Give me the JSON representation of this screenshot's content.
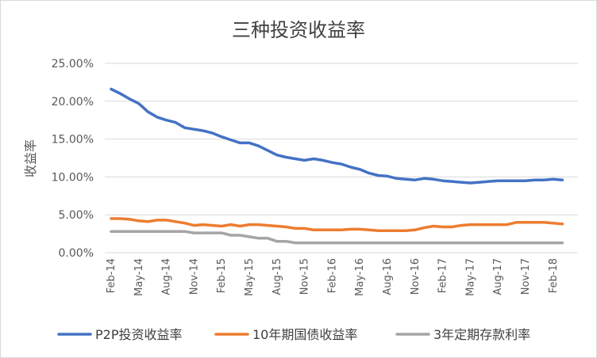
{
  "chart_data": {
    "type": "line",
    "title": "三种投资收益率",
    "ylabel": "收益率",
    "xlabel": "",
    "ylim": [
      0,
      25
    ],
    "y_ticks": [
      "0.00%",
      "5.00%",
      "10.00%",
      "15.00%",
      "20.00%",
      "25.00%"
    ],
    "x_ticks": [
      "Feb-14",
      "May-14",
      "Aug-14",
      "Nov-14",
      "Feb-15",
      "May-15",
      "Aug-15",
      "Nov-15",
      "Feb-16",
      "May-16",
      "Aug-16",
      "Nov-16",
      "Feb-17",
      "May-17",
      "Aug-17",
      "Nov-17",
      "Feb-18"
    ],
    "grid": true,
    "legend": "bottom",
    "series": [
      {
        "name": "P2P投资收益率",
        "color": "#4472c4",
        "values": [
          21.6,
          21.0,
          20.3,
          19.7,
          18.6,
          17.9,
          17.5,
          17.2,
          16.5,
          16.3,
          16.1,
          15.8,
          15.3,
          14.9,
          14.5,
          14.5,
          14.1,
          13.5,
          12.9,
          12.6,
          12.4,
          12.2,
          12.4,
          12.2,
          11.9,
          11.7,
          11.3,
          11.0,
          10.5,
          10.2,
          10.1,
          9.8,
          9.7,
          9.6,
          9.8,
          9.7,
          9.5,
          9.4,
          9.3,
          9.2,
          9.3,
          9.4,
          9.5,
          9.5,
          9.5,
          9.5,
          9.6,
          9.6,
          9.7,
          9.6
        ]
      },
      {
        "name": "10年期国债收益率",
        "color": "#ed7d31",
        "values": [
          4.5,
          4.5,
          4.4,
          4.2,
          4.1,
          4.3,
          4.3,
          4.1,
          3.9,
          3.6,
          3.7,
          3.6,
          3.5,
          3.7,
          3.5,
          3.7,
          3.7,
          3.6,
          3.5,
          3.4,
          3.2,
          3.2,
          3.0,
          3.0,
          3.0,
          3.0,
          3.1,
          3.1,
          3.0,
          2.9,
          2.9,
          2.9,
          2.9,
          3.0,
          3.3,
          3.5,
          3.4,
          3.4,
          3.6,
          3.7,
          3.7,
          3.7,
          3.7,
          3.7,
          4.0,
          4.0,
          4.0,
          4.0,
          3.9,
          3.8
        ]
      },
      {
        "name": "3年定期存款利率",
        "color": "#a5a5a5",
        "values": [
          2.8,
          2.8,
          2.8,
          2.8,
          2.8,
          2.8,
          2.8,
          2.8,
          2.8,
          2.6,
          2.6,
          2.6,
          2.6,
          2.3,
          2.3,
          2.1,
          1.9,
          1.9,
          1.5,
          1.5,
          1.3,
          1.3,
          1.3,
          1.3,
          1.3,
          1.3,
          1.3,
          1.3,
          1.3,
          1.3,
          1.3,
          1.3,
          1.3,
          1.3,
          1.3,
          1.3,
          1.3,
          1.3,
          1.3,
          1.3,
          1.3,
          1.3,
          1.3,
          1.3,
          1.3,
          1.3,
          1.3,
          1.3,
          1.3,
          1.3
        ]
      }
    ]
  }
}
